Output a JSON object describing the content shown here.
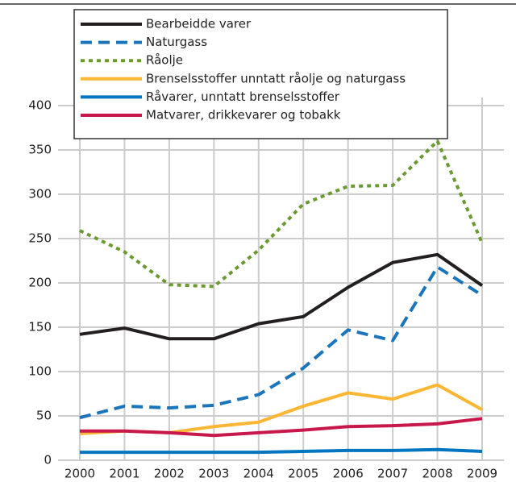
{
  "chart_data": {
    "type": "line",
    "categories": [
      "2000",
      "2001",
      "2002",
      "2003",
      "2004",
      "2005",
      "2006",
      "2007",
      "2008",
      "2009"
    ],
    "series": [
      {
        "name": "Bearbeidde varer",
        "color": "#231f20",
        "dash": "solid",
        "values": [
          142,
          149,
          137,
          137,
          154,
          162,
          195,
          223,
          232,
          197
        ]
      },
      {
        "name": "Naturgass",
        "color": "#1a75bb",
        "dash": "dashed",
        "values": [
          48,
          61,
          59,
          62,
          74,
          104,
          147,
          135,
          218,
          186
        ]
      },
      {
        "name": "Råolje",
        "color": "#6b9a33",
        "dash": "dotted",
        "values": [
          259,
          235,
          198,
          196,
          237,
          289,
          309,
          310,
          360,
          245
        ]
      },
      {
        "name": "Brenselsstoffer unntatt råolje og naturgass",
        "color": "#fbb734",
        "dash": "solid",
        "values": [
          30,
          33,
          31,
          38,
          43,
          61,
          76,
          69,
          85,
          57
        ]
      },
      {
        "name": "Råvarer, unntatt brenselsstoffer",
        "color": "#0076c0",
        "dash": "solid",
        "values": [
          9,
          9,
          9,
          9,
          9,
          10,
          11,
          11,
          12,
          10
        ]
      },
      {
        "name": "Matvarer, drikkevarer og tobakk",
        "color": "#c8174b",
        "dash": "solid",
        "values": [
          33,
          33,
          31,
          28,
          31,
          34,
          38,
          39,
          41,
          47
        ]
      }
    ],
    "ylim": [
      0,
      400
    ],
    "yticks": [
      0,
      50,
      100,
      150,
      200,
      250,
      300,
      350,
      400
    ],
    "grid": true
  }
}
